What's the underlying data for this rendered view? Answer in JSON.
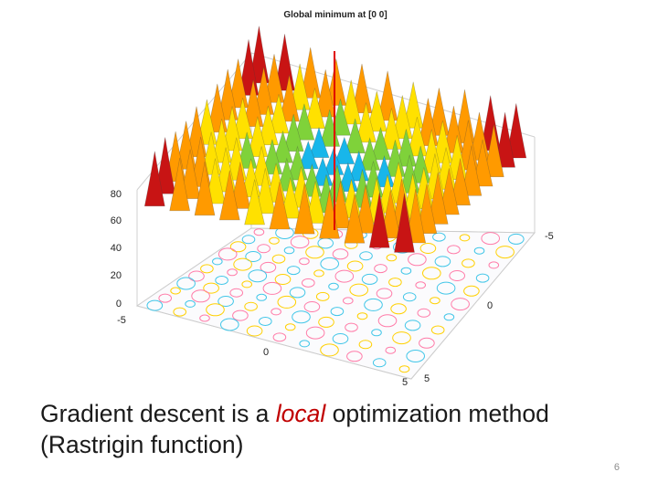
{
  "figure": {
    "title": "Global minimum at [0 0]",
    "z_ticks": [
      "80",
      "60",
      "40",
      "20",
      "0"
    ],
    "x_ticks": [
      "-5",
      "0",
      "5"
    ],
    "y_ticks": [
      "-5",
      "0",
      "5"
    ],
    "colors": {
      "peak": "#c81414",
      "high": "#ff9a00",
      "mid": "#ffe100",
      "low": "#7fd23a",
      "valley": "#18b6ea",
      "min_marker": "#e00000",
      "contour_a": "#ff7ba8",
      "contour_b": "#41c6e8",
      "contour_c": "#ffd000"
    }
  },
  "caption": {
    "part1": "Gradient descent is a ",
    "emphasis": "local",
    "part2": " optimization method",
    "line2": "(Rastrigin function)"
  },
  "page_number": "6"
}
